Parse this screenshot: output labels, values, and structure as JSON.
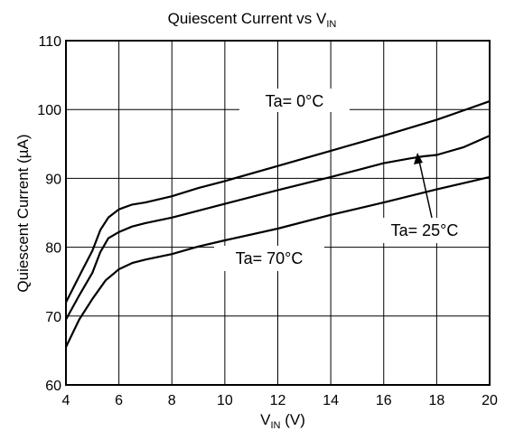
{
  "chart_data": {
    "type": "line",
    "title": "Quiescent Current vs V",
    "title_sub": "IN",
    "xlabel": "V",
    "xlabel_sub": "IN",
    "xlabel_unit": " (V)",
    "ylabel": "Quiescent Current (µA)",
    "xlim": [
      4,
      20
    ],
    "ylim": [
      60,
      110
    ],
    "x_ticks": [
      "4",
      "6",
      "8",
      "10",
      "12",
      "14",
      "16",
      "18",
      "20"
    ],
    "y_ticks": [
      "60",
      "70",
      "80",
      "90",
      "100",
      "110"
    ],
    "grid": true,
    "series": [
      {
        "name": "Ta= 0°C",
        "x": [
          4.0,
          4.5,
          5.0,
          5.3,
          5.6,
          6.0,
          6.5,
          7.0,
          8.0,
          9.0,
          10.0,
          12.0,
          14.0,
          16.0,
          18.0,
          20.0
        ],
        "y": [
          72.0,
          75.8,
          79.5,
          82.5,
          84.3,
          85.5,
          86.2,
          86.5,
          87.4,
          88.6,
          89.6,
          91.8,
          94.0,
          96.2,
          98.5,
          101.2
        ]
      },
      {
        "name": "Ta= 25°C",
        "x": [
          4.0,
          4.5,
          5.0,
          5.3,
          5.6,
          6.0,
          6.5,
          7.0,
          8.0,
          9.0,
          10.0,
          12.0,
          14.0,
          15.0,
          16.0,
          17.0,
          17.5,
          18.0,
          19.0,
          20.0
        ],
        "y": [
          69.5,
          73.0,
          76.3,
          79.3,
          81.3,
          82.2,
          83.0,
          83.5,
          84.3,
          85.3,
          86.3,
          88.3,
          90.2,
          91.2,
          92.2,
          92.9,
          93.2,
          93.4,
          94.5,
          96.2
        ]
      },
      {
        "name": "Ta= 70°C",
        "x": [
          4.0,
          4.5,
          5.0,
          5.5,
          6.0,
          6.5,
          7.0,
          8.0,
          9.0,
          10.0,
          12.0,
          14.0,
          16.0,
          18.0,
          20.0
        ],
        "y": [
          65.5,
          69.5,
          72.5,
          75.2,
          76.8,
          77.7,
          78.2,
          79.0,
          80.1,
          81.0,
          82.7,
          84.7,
          86.5,
          88.4,
          90.2
        ]
      }
    ],
    "annotations": [
      {
        "text": "Ta= 0°C",
        "series": 0
      },
      {
        "text": "Ta= 25°C",
        "series": 1,
        "arrow": true
      },
      {
        "text": "Ta= 70°C",
        "series": 2
      }
    ]
  }
}
